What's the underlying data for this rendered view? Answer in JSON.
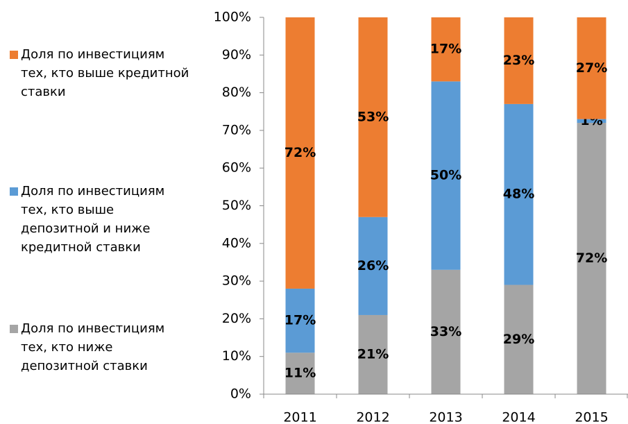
{
  "chart_data": {
    "type": "stacked_bar",
    "categories": [
      "2011",
      "2012",
      "2013",
      "2014",
      "2015"
    ],
    "series": [
      {
        "name": "Доля по инвестициям тех, кто ниже депозитной ставки",
        "color": "#a5a5a5",
        "values": [
          11,
          21,
          33,
          29,
          72
        ],
        "value_labels": [
          "11%",
          "21%",
          "33%",
          "29%",
          "72%"
        ]
      },
      {
        "name": "Доля по инвестициям тех, кто выше депозитной и ниже кредитной ставки",
        "color": "#5b9bd5",
        "values": [
          17,
          26,
          50,
          48,
          1
        ],
        "value_labels": [
          "17%",
          "26%",
          "50%",
          "48%",
          "1%"
        ]
      },
      {
        "name": "Доля по инвестициям тех, кто выше кредитной ставки",
        "color": "#ed7d31",
        "values": [
          72,
          53,
          17,
          23,
          27
        ],
        "value_labels": [
          "72%",
          "53%",
          "17%",
          "23%",
          "27%"
        ]
      }
    ],
    "ylim": [
      0,
      100
    ],
    "yticks": [
      {
        "value": 0,
        "label": "0%"
      },
      {
        "value": 10,
        "label": "10%"
      },
      {
        "value": 20,
        "label": "20%"
      },
      {
        "value": 30,
        "label": "30%"
      },
      {
        "value": 40,
        "label": "40%"
      },
      {
        "value": 50,
        "label": "50%"
      },
      {
        "value": 60,
        "label": "60%"
      },
      {
        "value": 70,
        "label": "70%"
      },
      {
        "value": 80,
        "label": "80%"
      },
      {
        "value": 90,
        "label": "90%"
      },
      {
        "value": 100,
        "label": "100%"
      }
    ],
    "legend": "left"
  }
}
